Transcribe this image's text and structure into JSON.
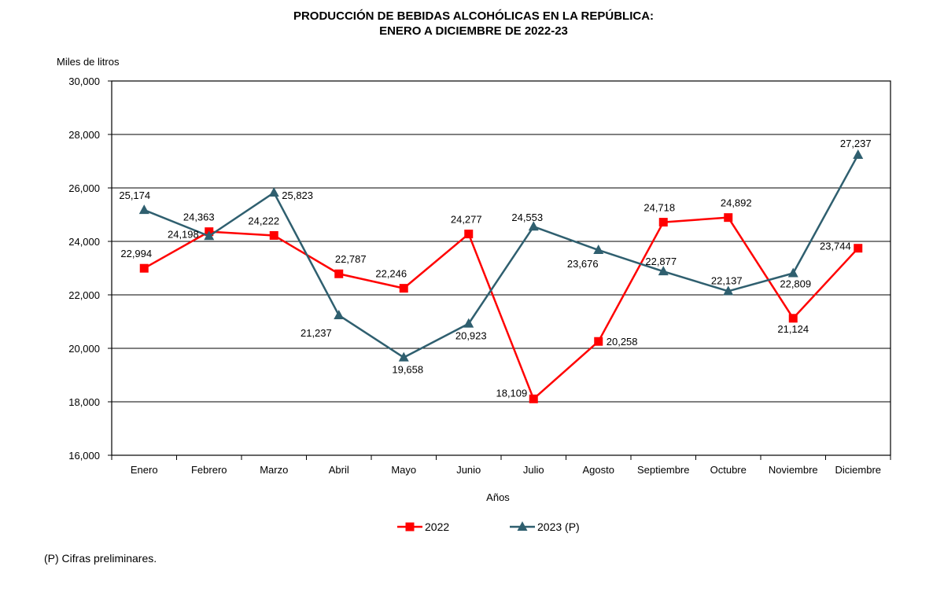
{
  "chart_data": {
    "type": "line",
    "title": "PRODUCCIÓN DE BEBIDAS ALCOHÓLICAS EN LA REPÚBLICA:",
    "subtitle": "ENERO A DICIEMBRE DE 2022-23",
    "ylabel": "Miles de litros",
    "xlabel": "Años",
    "ylim": [
      16000,
      30000
    ],
    "yticks": [
      16000,
      18000,
      20000,
      22000,
      24000,
      26000,
      28000,
      30000
    ],
    "grid": true,
    "legend_position": "bottom",
    "categories": [
      "Enero",
      "Febrero",
      "Marzo",
      "Abril",
      "Mayo",
      "Junio",
      "Julio",
      "Agosto",
      "Septiembre",
      "Octubre",
      "Noviembre",
      "Diciembre"
    ],
    "series": [
      {
        "name": "2022",
        "color": "#ff0000",
        "marker": "square",
        "values": [
          22994,
          24363,
          24222,
          22787,
          22246,
          24277,
          18109,
          20258,
          24718,
          24892,
          21124,
          23744
        ]
      },
      {
        "name": "2023 (P)",
        "color": "#2f5f6f",
        "marker": "triangle",
        "values": [
          25174,
          24198,
          25823,
          21237,
          19658,
          20923,
          24553,
          23676,
          22877,
          22137,
          22809,
          27237
        ]
      }
    ]
  },
  "footnote": "(P) Cifras preliminares."
}
